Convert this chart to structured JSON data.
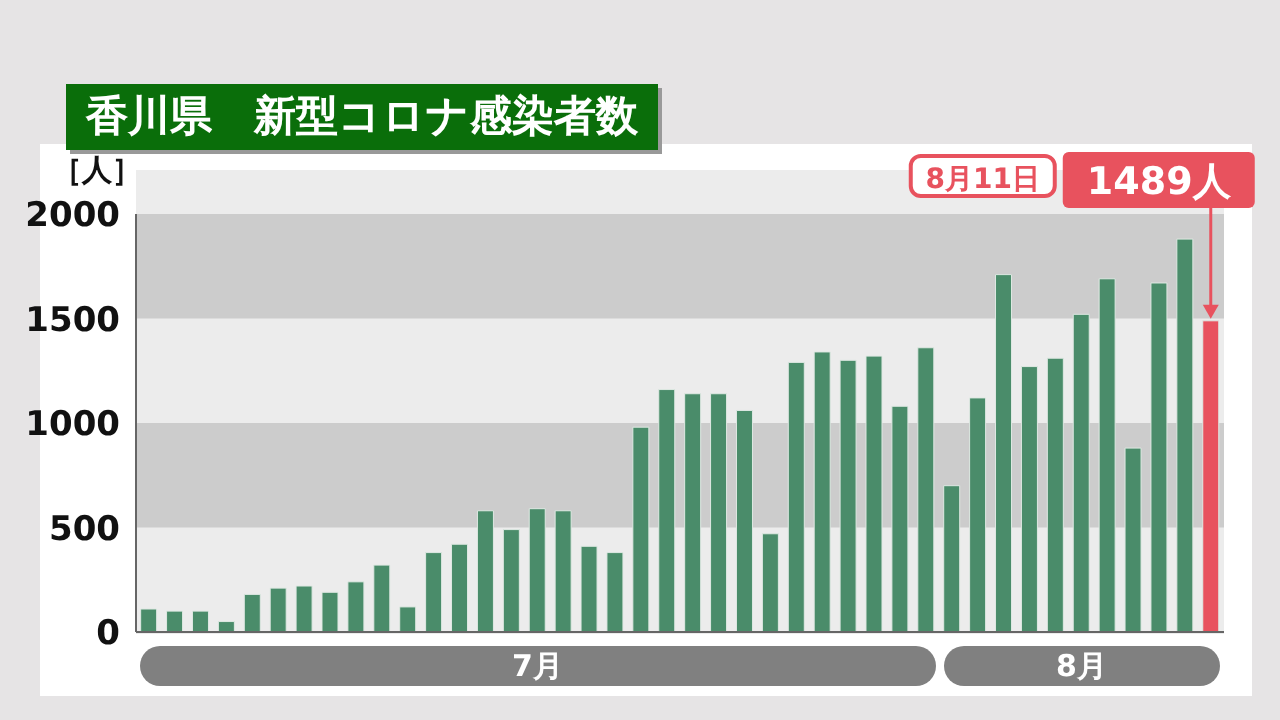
{
  "chart_data": {
    "type": "bar",
    "title": "香川県　新型コロナ感染者数",
    "ylabel": "［人］",
    "categories": [
      null,
      null,
      null,
      null,
      null,
      null,
      null,
      null,
      null,
      null,
      null,
      null,
      null,
      null,
      null,
      null,
      null,
      null,
      null,
      null,
      null,
      null,
      null,
      null,
      null,
      null,
      null,
      null,
      null,
      null,
      null,
      null,
      null,
      null,
      null,
      null,
      null,
      null,
      null,
      null,
      null,
      null
    ],
    "values": [
      110,
      100,
      100,
      50,
      180,
      210,
      220,
      190,
      240,
      320,
      120,
      380,
      420,
      580,
      490,
      590,
      580,
      410,
      380,
      980,
      1160,
      1140,
      1140,
      1060,
      470,
      1290,
      1340,
      1300,
      1320,
      1080,
      1360,
      700,
      1120,
      1710,
      1270,
      1310,
      1520,
      1690,
      880,
      1670,
      1880,
      1489
    ],
    "colors": [
      "#4a8c6a",
      "#4a8c6a",
      "#4a8c6a",
      "#4a8c6a",
      "#4a8c6a",
      "#4a8c6a",
      "#4a8c6a",
      "#4a8c6a",
      "#4a8c6a",
      "#4a8c6a",
      "#4a8c6a",
      "#4a8c6a",
      "#4a8c6a",
      "#4a8c6a",
      "#4a8c6a",
      "#4a8c6a",
      "#4a8c6a",
      "#4a8c6a",
      "#4a8c6a",
      "#4a8c6a",
      "#4a8c6a",
      "#4a8c6a",
      "#4a8c6a",
      "#4a8c6a",
      "#4a8c6a",
      "#4a8c6a",
      "#4a8c6a",
      "#4a8c6a",
      "#4a8c6a",
      "#4a8c6a",
      "#4a8c6a",
      "#4a8c6a",
      "#4a8c6a",
      "#4a8c6a",
      "#4a8c6a",
      "#4a8c6a",
      "#4a8c6a",
      "#4a8c6a",
      "#4a8c6a",
      "#4a8c6a",
      "#4a8c6a",
      "#e8525e"
    ],
    "value_labels": [
      null,
      null,
      null,
      null,
      null,
      null,
      null,
      null,
      null,
      null,
      null,
      null,
      null,
      null,
      null,
      null,
      null,
      null,
      null,
      null,
      null,
      null,
      null,
      null,
      null,
      null,
      null,
      null,
      null,
      null,
      null,
      null,
      null,
      null,
      null,
      null,
      null,
      null,
      null,
      null,
      null,
      "1489人"
    ],
    "annotations": [
      "7月",
      "8月",
      "8月11日"
    ],
    "ylim": [
      0,
      2000
    ],
    "yticks": [
      0,
      500,
      1000,
      1500,
      2000
    ],
    "bands": [
      {
        "axis": "y",
        "from": 500,
        "to": 1000,
        "color": "#cccccc"
      },
      {
        "axis": "y",
        "from": 1500,
        "to": 2000,
        "color": "#cccccc"
      }
    ]
  }
}
